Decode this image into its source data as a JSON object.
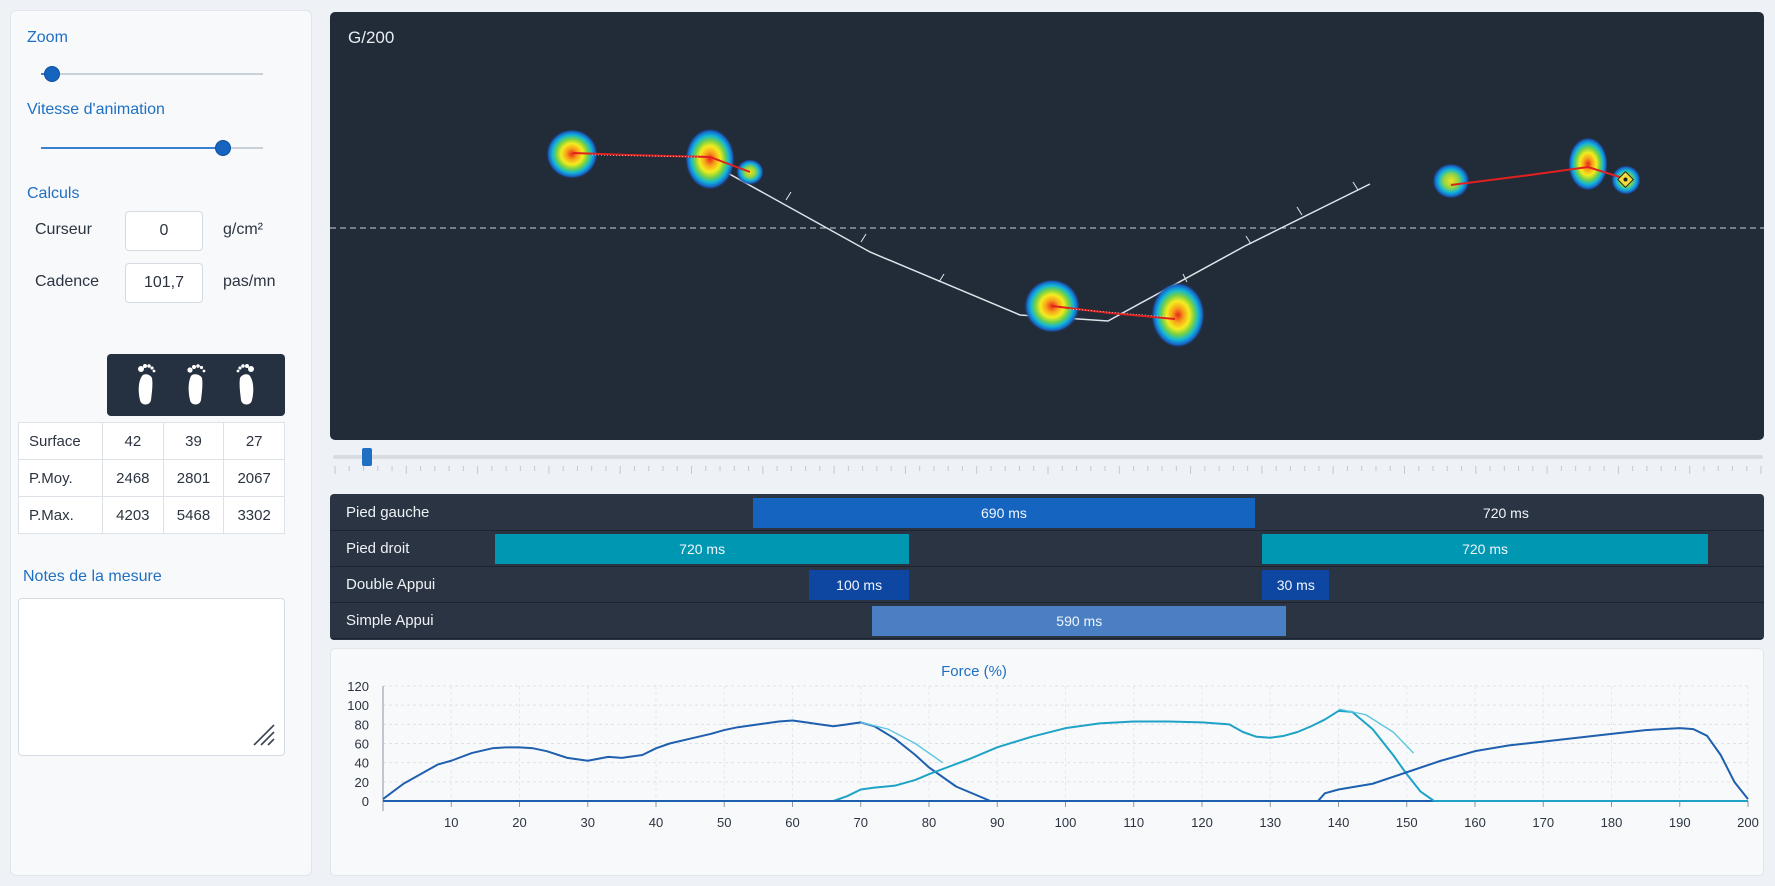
{
  "sidebar": {
    "zoom": {
      "title": "Zoom",
      "value": 0.05
    },
    "speed": {
      "title": "Vitesse d'animation",
      "value": 0.82
    },
    "calculs": {
      "title": "Calculs",
      "cursor": {
        "label": "Curseur",
        "value": "0",
        "unit": "g/cm²"
      },
      "cadence": {
        "label": "Cadence",
        "value": "101,7",
        "unit": "pas/mn"
      }
    },
    "feet_icons": [
      "left-foot-icon",
      "both-feet-icon",
      "right-foot-icon"
    ],
    "stats": {
      "rows": [
        {
          "label": "Surface",
          "values": [
            "42",
            "39",
            "27"
          ]
        },
        {
          "label": "P.Moy.",
          "values": [
            "2468",
            "2801",
            "2067"
          ]
        },
        {
          "label": "P.Max.",
          "values": [
            "4203",
            "5468",
            "3302"
          ]
        }
      ]
    },
    "notes": {
      "title": "Notes de la mesure",
      "value": ""
    }
  },
  "heatmap": {
    "label": "G/200",
    "colors": {
      "background": "#222b38",
      "path": "#ffffff",
      "cop": "#e0211f",
      "midline": "#c9ced6"
    }
  },
  "timeline": {
    "position": 0.02
  },
  "phases": {
    "rows": [
      {
        "name": "Pied gauche",
        "segments": [
          {
            "start": 0.295,
            "end": 0.645,
            "label": "690 ms",
            "color": "#1565c0"
          },
          {
            "start": 0.645,
            "end": 0.995,
            "label": "720 ms",
            "color": "transparent"
          }
        ]
      },
      {
        "name": "Pied droit",
        "segments": [
          {
            "start": 0.115,
            "end": 0.404,
            "label": "720 ms",
            "color": "#0097b2"
          },
          {
            "start": 0.65,
            "end": 0.961,
            "label": "720 ms",
            "color": "#0097b2"
          }
        ]
      },
      {
        "name": "Double Appui",
        "segments": [
          {
            "start": 0.334,
            "end": 0.404,
            "label": "100 ms",
            "color": "#0d47a1"
          },
          {
            "start": 0.65,
            "end": 0.697,
            "label": "30 ms",
            "color": "#0d47a1"
          }
        ]
      },
      {
        "name": "Simple Appui",
        "segments": [
          {
            "start": 0.378,
            "end": 0.667,
            "label": "590 ms",
            "color": "#4a7fc4"
          }
        ]
      }
    ]
  },
  "chart_data": {
    "type": "line",
    "title": "Force (%)",
    "xlim": [
      0,
      200
    ],
    "ylim": [
      0,
      120
    ],
    "x_ticks": [
      10,
      20,
      30,
      40,
      50,
      60,
      70,
      80,
      90,
      100,
      110,
      120,
      130,
      140,
      150,
      160,
      170,
      180,
      190,
      200
    ],
    "y_ticks": [
      0,
      20,
      40,
      60,
      80,
      100,
      120
    ],
    "grid": true,
    "series": [
      {
        "color": "#1e5fae",
        "x": [
          0,
          3,
          6,
          8,
          10,
          13,
          16,
          18,
          20,
          22,
          24,
          27,
          30,
          33,
          35,
          38,
          40,
          42,
          45,
          48,
          50,
          52,
          55,
          58,
          60,
          62,
          64,
          66,
          68,
          70,
          72,
          75,
          78,
          80,
          84,
          88,
          89,
          200
        ],
        "y": [
          2,
          18,
          30,
          38,
          42,
          50,
          55,
          56,
          56,
          55,
          52,
          45,
          42,
          46,
          45,
          48,
          55,
          60,
          65,
          70,
          74,
          77,
          80,
          83,
          84,
          82,
          80,
          78,
          80,
          82,
          78,
          65,
          48,
          35,
          15,
          3,
          0,
          0
        ]
      },
      {
        "color": "#1ea3c6",
        "x": [
          0,
          66,
          68,
          70,
          72,
          75,
          78,
          80,
          83,
          86,
          88,
          90,
          95,
          100,
          105,
          110,
          115,
          120,
          124,
          126,
          128,
          130,
          132,
          134,
          136,
          138,
          140,
          142,
          145,
          148,
          150,
          152,
          154,
          200
        ],
        "y": [
          0,
          0,
          5,
          12,
          14,
          16,
          22,
          28,
          36,
          44,
          50,
          56,
          67,
          76,
          81,
          83,
          83,
          82,
          80,
          72,
          67,
          66,
          68,
          72,
          78,
          85,
          94,
          93,
          75,
          48,
          28,
          10,
          0,
          0
        ]
      },
      {
        "color": "#1e5fae",
        "x": [
          0,
          137,
          138,
          140,
          145,
          150,
          155,
          160,
          165,
          170,
          175,
          180,
          185,
          190,
          192,
          194,
          196,
          198,
          200
        ],
        "y": [
          0,
          0,
          8,
          12,
          18,
          30,
          42,
          52,
          58,
          62,
          66,
          70,
          74,
          76,
          75,
          68,
          48,
          20,
          2
        ]
      },
      {
        "color": "#5bc6e0",
        "x": [
          70,
          74,
          78,
          82
        ],
        "y": [
          82,
          75,
          60,
          40
        ]
      },
      {
        "color": "#5bc6e0",
        "x": [
          140,
          144,
          148,
          151
        ],
        "y": [
          96,
          90,
          72,
          50
        ]
      }
    ]
  }
}
